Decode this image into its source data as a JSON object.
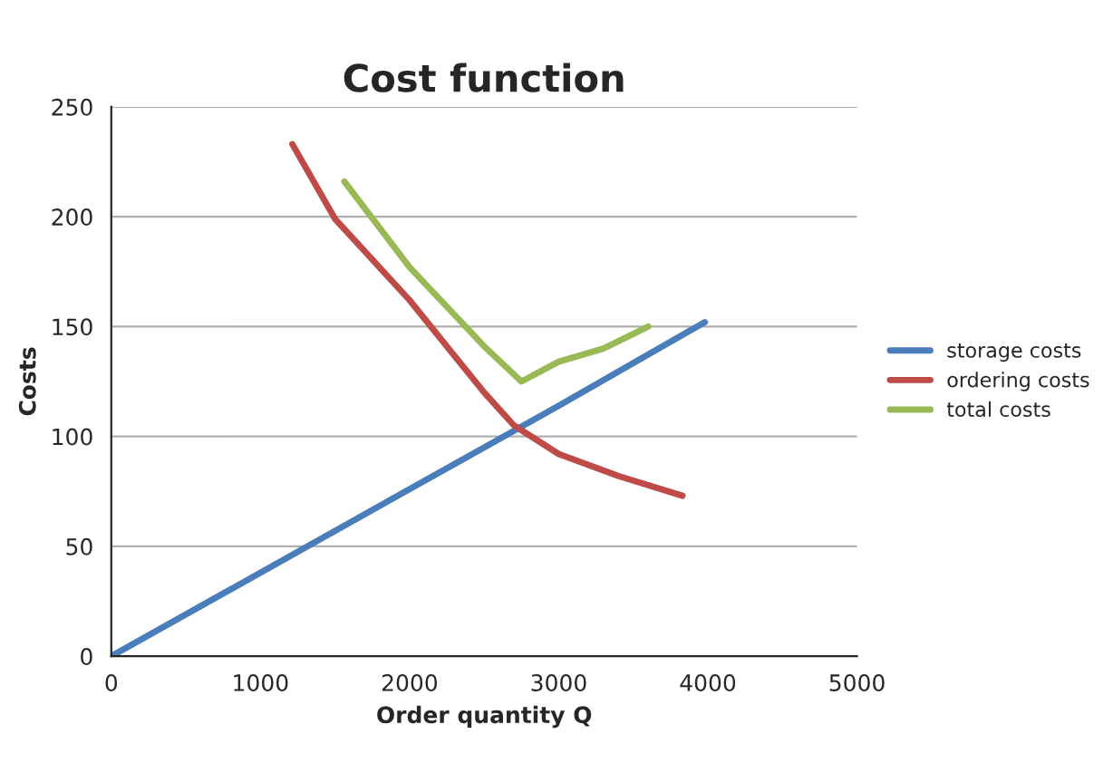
{
  "chart_data": {
    "type": "line",
    "title": "Cost function",
    "xlabel": "Order quantity Q",
    "ylabel": "Costs",
    "xlim": [
      0,
      5000
    ],
    "xticks": [
      0,
      1000,
      2000,
      3000,
      4000,
      5000
    ],
    "ylim": [
      0,
      250
    ],
    "yticks": [
      0,
      50,
      100,
      150,
      200,
      250
    ],
    "grid": "y",
    "legend": "right",
    "marker": "none",
    "line_style": "solid",
    "series": [
      {
        "name": "storage costs",
        "color": "#4a7ebb",
        "x": [
          0,
          1000,
          2000,
          3000,
          3980
        ],
        "values": [
          0,
          38,
          76,
          114,
          152
        ]
      },
      {
        "name": "ordering costs",
        "color": "#be4b48",
        "x": [
          1214,
          1500,
          2000,
          2500,
          2700,
          3000,
          3400,
          3830
        ],
        "values": [
          233,
          199,
          162,
          120,
          105,
          92,
          82,
          73
        ]
      },
      {
        "name": "total costs",
        "color": "#98b954",
        "x": [
          1563,
          2000,
          2500,
          2750,
          3000,
          3300,
          3600
        ],
        "values": [
          216,
          177,
          141,
          125,
          134,
          140,
          150
        ]
      }
    ]
  }
}
